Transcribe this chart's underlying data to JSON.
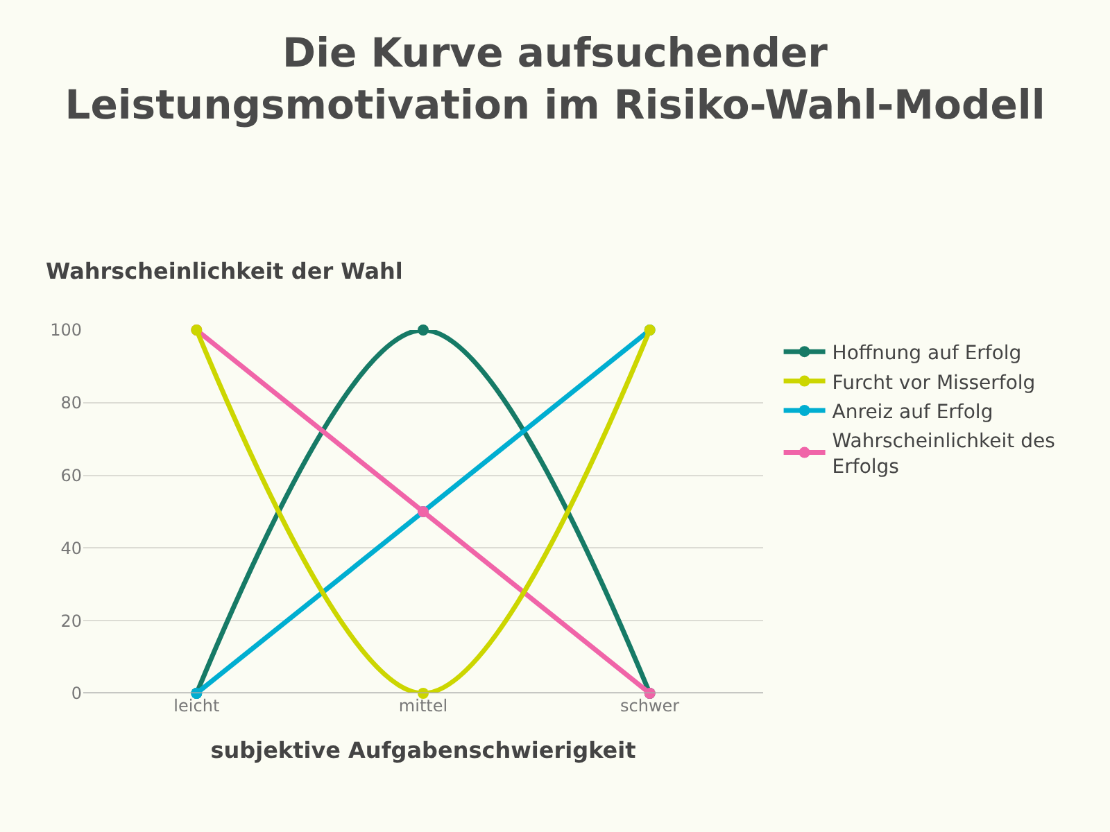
{
  "chart_data": {
    "type": "line",
    "title": "Die Kurve aufsuchender Leistungsmotivation im Risiko-Wahl-Modell",
    "xlabel": "subjektive Aufgabenschwierigkeit",
    "ylabel": "Wahrscheinlichkeit der Wahl",
    "categories": [
      "leicht",
      "mittel",
      "schwer"
    ],
    "series": [
      {
        "name": "Hoffnung auf Erfolg",
        "color": "#167a66",
        "values": [
          0,
          100,
          0
        ]
      },
      {
        "name": "Furcht vor Misserfolg",
        "color": "#ccd600",
        "values": [
          100,
          0,
          100
        ]
      },
      {
        "name": "Anreiz auf Erfolg",
        "color": "#00aed1",
        "values": [
          0,
          50,
          100
        ]
      },
      {
        "name": "Wahrscheinlichkeit des Erfolgs",
        "color": "#f064a8",
        "values": [
          100,
          50,
          0
        ]
      }
    ],
    "ylim": [
      0,
      100
    ],
    "yticks": [
      0,
      20,
      40,
      60,
      80,
      100
    ],
    "grid": "y",
    "legend": "right",
    "marker": "circle",
    "line_style": "solid"
  }
}
